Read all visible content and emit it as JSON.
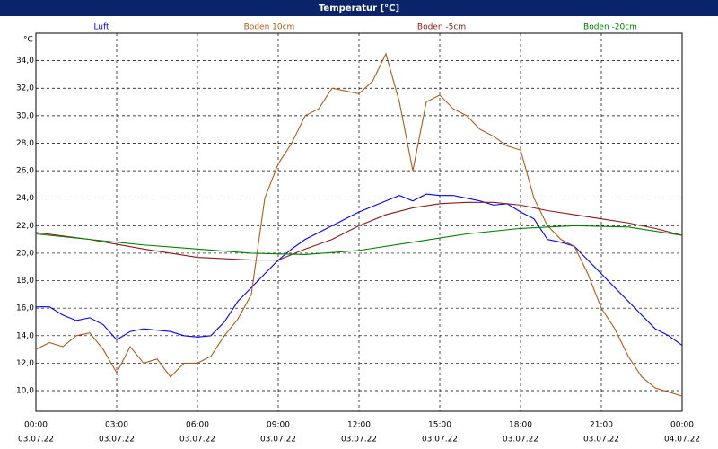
{
  "chart_data": {
    "type": "line",
    "title": "Temperatur [°C]",
    "y_unit": "°C",
    "xlim": [
      0,
      24
    ],
    "ylim": [
      8.5,
      36
    ],
    "xticks": [
      {
        "value": 0,
        "label": "00:00"
      },
      {
        "value": 3,
        "label": "03:00"
      },
      {
        "value": 6,
        "label": "06:00"
      },
      {
        "value": 9,
        "label": "09:00"
      },
      {
        "value": 12,
        "label": "12:00"
      },
      {
        "value": 15,
        "label": "15:00"
      },
      {
        "value": 18,
        "label": "18:00"
      },
      {
        "value": 21,
        "label": "21:00"
      },
      {
        "value": 24,
        "label": "00:00"
      }
    ],
    "xtick_dates": [
      "03.07.22",
      "03.07.22",
      "03.07.22",
      "03.07.22",
      "03.07.22",
      "03.07.22",
      "03.07.22",
      "03.07.22",
      "04.07.22"
    ],
    "yticks": [
      {
        "value": 10,
        "label": "10,0"
      },
      {
        "value": 12,
        "label": "12,0"
      },
      {
        "value": 14,
        "label": "14,0"
      },
      {
        "value": 16,
        "label": "16,0"
      },
      {
        "value": 18,
        "label": "18,0"
      },
      {
        "value": 20,
        "label": "20,0"
      },
      {
        "value": 22,
        "label": "22,0"
      },
      {
        "value": 24,
        "label": "24,0"
      },
      {
        "value": 26,
        "label": "26,0"
      },
      {
        "value": 28,
        "label": "28,0"
      },
      {
        "value": 30,
        "label": "30,0"
      },
      {
        "value": 32,
        "label": "32,0"
      },
      {
        "value": 34,
        "label": "34,0"
      }
    ],
    "grid": true,
    "series": [
      {
        "name": "Luft",
        "color": "#0000ff",
        "x": [
          0,
          0.5,
          1,
          1.5,
          2,
          2.5,
          3,
          3.5,
          4,
          4.5,
          5,
          5.5,
          6,
          6.5,
          7,
          7.5,
          8,
          8.5,
          9,
          9.5,
          10,
          10.5,
          11,
          11.5,
          12,
          12.5,
          13,
          13.5,
          14,
          14.5,
          15,
          15.5,
          16,
          16.5,
          17,
          17.5,
          18,
          18.5,
          19,
          19.5,
          20,
          20.5,
          21,
          21.5,
          22,
          22.5,
          23,
          23.5,
          24
        ],
        "values": [
          16.1,
          16.1,
          15.5,
          15.1,
          15.3,
          14.8,
          13.7,
          14.3,
          14.5,
          14.4,
          14.3,
          14.0,
          13.9,
          14.0,
          15.0,
          16.5,
          17.5,
          18.5,
          19.5,
          20.3,
          21.0,
          21.5,
          22.0,
          22.5,
          23.0,
          23.4,
          23.8,
          24.2,
          23.8,
          24.3,
          24.2,
          24.2,
          24.0,
          23.8,
          23.5,
          23.6,
          23.0,
          22.5,
          21.0,
          20.8,
          20.5,
          19.5,
          18.5,
          17.5,
          16.5,
          15.5,
          14.5,
          14.0,
          13.3
        ]
      },
      {
        "name": "Boden 10cm",
        "color": "#b05a1c",
        "x": [
          0,
          0.5,
          1,
          1.5,
          2,
          2.5,
          3,
          3.5,
          4,
          4.5,
          5,
          5.5,
          6,
          6.5,
          7,
          7.5,
          8,
          8.5,
          9,
          9.5,
          10,
          10.5,
          11,
          11.5,
          12,
          12.5,
          13,
          13.5,
          14,
          14.5,
          15,
          15.5,
          16,
          16.5,
          17,
          17.5,
          18,
          18.5,
          19,
          19.5,
          20,
          20.5,
          21,
          21.5,
          22,
          22.5,
          23,
          23.5,
          24
        ],
        "values": [
          13.0,
          13.5,
          13.2,
          14.0,
          14.2,
          13.0,
          11.3,
          13.2,
          12.0,
          12.3,
          11.0,
          12.0,
          12.0,
          12.5,
          14.0,
          15.2,
          17.0,
          24.0,
          26.5,
          28.0,
          30.0,
          30.5,
          32.0,
          31.8,
          31.6,
          32.5,
          34.5,
          31.0,
          26.0,
          31.0,
          31.5,
          30.5,
          30.0,
          29.0,
          28.5,
          27.8,
          27.5,
          24.0,
          22.0,
          21.0,
          20.5,
          18.5,
          16.0,
          14.5,
          12.5,
          11.0,
          10.2,
          9.9,
          9.6
        ]
      },
      {
        "name": "Boden -5cm",
        "color": "#8b1a1a",
        "x": [
          0,
          2,
          4,
          6,
          8,
          9,
          10,
          11,
          12,
          13,
          14,
          15,
          16,
          17,
          18,
          19,
          20,
          21,
          22,
          23,
          24
        ],
        "values": [
          21.5,
          21.0,
          20.3,
          19.7,
          19.5,
          19.5,
          20.3,
          21.0,
          22.0,
          22.8,
          23.3,
          23.6,
          23.7,
          23.7,
          23.5,
          23.1,
          22.8,
          22.5,
          22.2,
          21.8,
          21.3
        ]
      },
      {
        "name": "Boden -20cm",
        "color": "#008000",
        "x": [
          0,
          2,
          4,
          6,
          8,
          10,
          12,
          14,
          16,
          18,
          20,
          22,
          24
        ],
        "values": [
          21.4,
          21.0,
          20.6,
          20.3,
          20.0,
          19.9,
          20.2,
          20.8,
          21.4,
          21.8,
          22.0,
          21.9,
          21.3
        ]
      }
    ]
  }
}
